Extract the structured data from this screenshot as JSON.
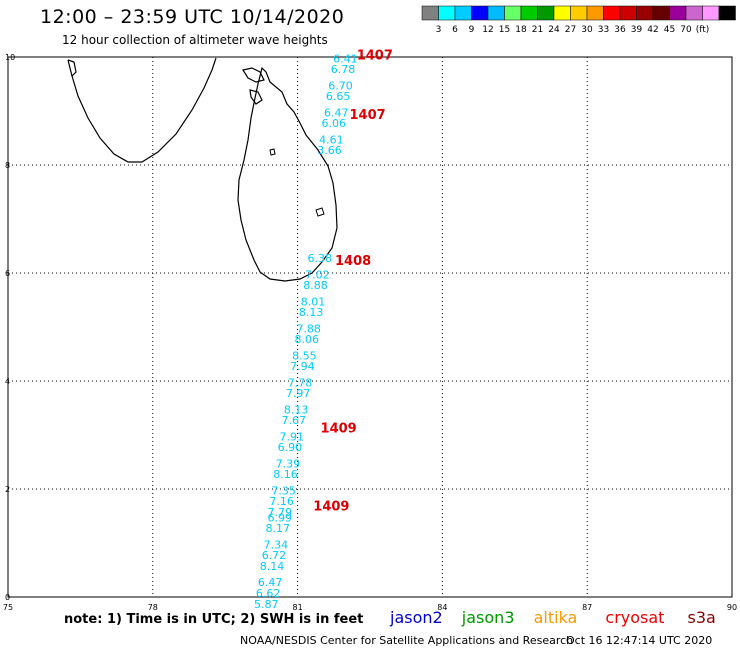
{
  "header": {
    "title": "12:00 – 23:59 UTC 10/14/2020",
    "subtitle": "12 hour collection of altimeter wave heights"
  },
  "colorbar": {
    "colors": [
      "#808080",
      "#00ffff",
      "#00ccff",
      "#0000ff",
      "#00bbff",
      "#66ff66",
      "#00cc00",
      "#009900",
      "#ffff00",
      "#ffcc00",
      "#ff9900",
      "#ff0000",
      "#cc0000",
      "#990000",
      "#660000",
      "#990099",
      "#cc66cc",
      "#ff99ff",
      "#000000"
    ],
    "labels": [
      "3",
      "6",
      "9",
      "12",
      "15",
      "18",
      "21",
      "24",
      "27",
      "30",
      "33",
      "36",
      "39",
      "42",
      "45",
      "70",
      "(ft)"
    ]
  },
  "map": {
    "x_ticks": [
      "75",
      "78",
      "81",
      "84",
      "87",
      "90"
    ],
    "y_ticks": [
      "0",
      "2",
      "4",
      "6",
      "8",
      "10"
    ]
  },
  "track": {
    "color": "#00ccff",
    "values": [
      {
        "lat": 9.9,
        "lon": 81.99,
        "v": "6.41"
      },
      {
        "lat": 9.7,
        "lon": 81.94,
        "v": "6.78"
      },
      {
        "lat": 9.4,
        "lon": 81.89,
        "v": "6.70"
      },
      {
        "lat": 9.2,
        "lon": 81.84,
        "v": "6.65"
      },
      {
        "lat": 8.9,
        "lon": 81.8,
        "v": "6.47"
      },
      {
        "lat": 8.7,
        "lon": 81.75,
        "v": "6.06"
      },
      {
        "lat": 8.4,
        "lon": 81.7,
        "v": "4.61"
      },
      {
        "lat": 8.2,
        "lon": 81.66,
        "v": "3.66"
      },
      {
        "lat": 6.2,
        "lon": 81.46,
        "v": "6.38"
      },
      {
        "lat": 5.9,
        "lon": 81.41,
        "v": "7.02"
      },
      {
        "lat": 5.7,
        "lon": 81.37,
        "v": "8.88"
      },
      {
        "lat": 5.4,
        "lon": 81.32,
        "v": "8.01"
      },
      {
        "lat": 5.2,
        "lon": 81.28,
        "v": "8.13"
      },
      {
        "lat": 4.9,
        "lon": 81.23,
        "v": "7.88"
      },
      {
        "lat": 4.7,
        "lon": 81.19,
        "v": "8.06"
      },
      {
        "lat": 4.4,
        "lon": 81.14,
        "v": "8.55"
      },
      {
        "lat": 4.2,
        "lon": 81.1,
        "v": "7.94"
      },
      {
        "lat": 3.9,
        "lon": 81.05,
        "v": "7.78"
      },
      {
        "lat": 3.7,
        "lon": 81.01,
        "v": "7.97"
      },
      {
        "lat": 3.4,
        "lon": 80.97,
        "v": "8.13"
      },
      {
        "lat": 3.2,
        "lon": 80.92,
        "v": "7.67"
      },
      {
        "lat": 2.9,
        "lon": 80.88,
        "v": "7.91"
      },
      {
        "lat": 2.7,
        "lon": 80.84,
        "v": "6.90"
      },
      {
        "lat": 2.4,
        "lon": 80.8,
        "v": "7.39"
      },
      {
        "lat": 2.2,
        "lon": 80.75,
        "v": "8.16"
      },
      {
        "lat": 1.9,
        "lon": 80.71,
        "v": "7.35"
      },
      {
        "lat": 1.7,
        "lon": 80.67,
        "v": "7.16"
      },
      {
        "lat": 1.5,
        "lon": 80.63,
        "v": "7.79"
      },
      {
        "lat": 1.4,
        "lon": 80.63,
        "v": "6.99"
      },
      {
        "lat": 1.2,
        "lon": 80.59,
        "v": "8.17"
      },
      {
        "lat": 0.9,
        "lon": 80.55,
        "v": "7.34"
      },
      {
        "lat": 0.7,
        "lon": 80.51,
        "v": "6.72"
      },
      {
        "lat": 0.5,
        "lon": 80.47,
        "v": "8.14"
      },
      {
        "lat": 0.2,
        "lon": 80.43,
        "v": "6.47"
      },
      {
        "lat": 0.0,
        "lon": 80.39,
        "v": "6.62"
      },
      {
        "lat": -0.2,
        "lon": 80.35,
        "v": "5.87"
      }
    ]
  },
  "orbit_labels": [
    {
      "lat": 9.95,
      "lon": 82.6,
      "text": "1407"
    },
    {
      "lat": 8.85,
      "lon": 82.45,
      "text": "1407"
    },
    {
      "lat": 6.15,
      "lon": 82.15,
      "text": "1408"
    },
    {
      "lat": 3.05,
      "lon": 81.85,
      "text": "1409"
    },
    {
      "lat": 1.6,
      "lon": 81.7,
      "text": "1409"
    }
  ],
  "orbit_label_color": "#dd0000",
  "footer": {
    "note": "note:  1) Time is in UTC;  2) SWH is in feet",
    "legend": [
      {
        "name": "jason2",
        "color": "#0000cc"
      },
      {
        "name": "jason3",
        "color": "#009900"
      },
      {
        "name": "altika",
        "color": "#ff9900"
      },
      {
        "name": "cryosat",
        "color": "#ee0000"
      },
      {
        "name": "s3a",
        "color": "#880000"
      }
    ],
    "credit": "NOAA/NESDIS Center for Satellite Applications and Research",
    "timestamp": "Oct 16 12:47:14 UTC 2020"
  }
}
